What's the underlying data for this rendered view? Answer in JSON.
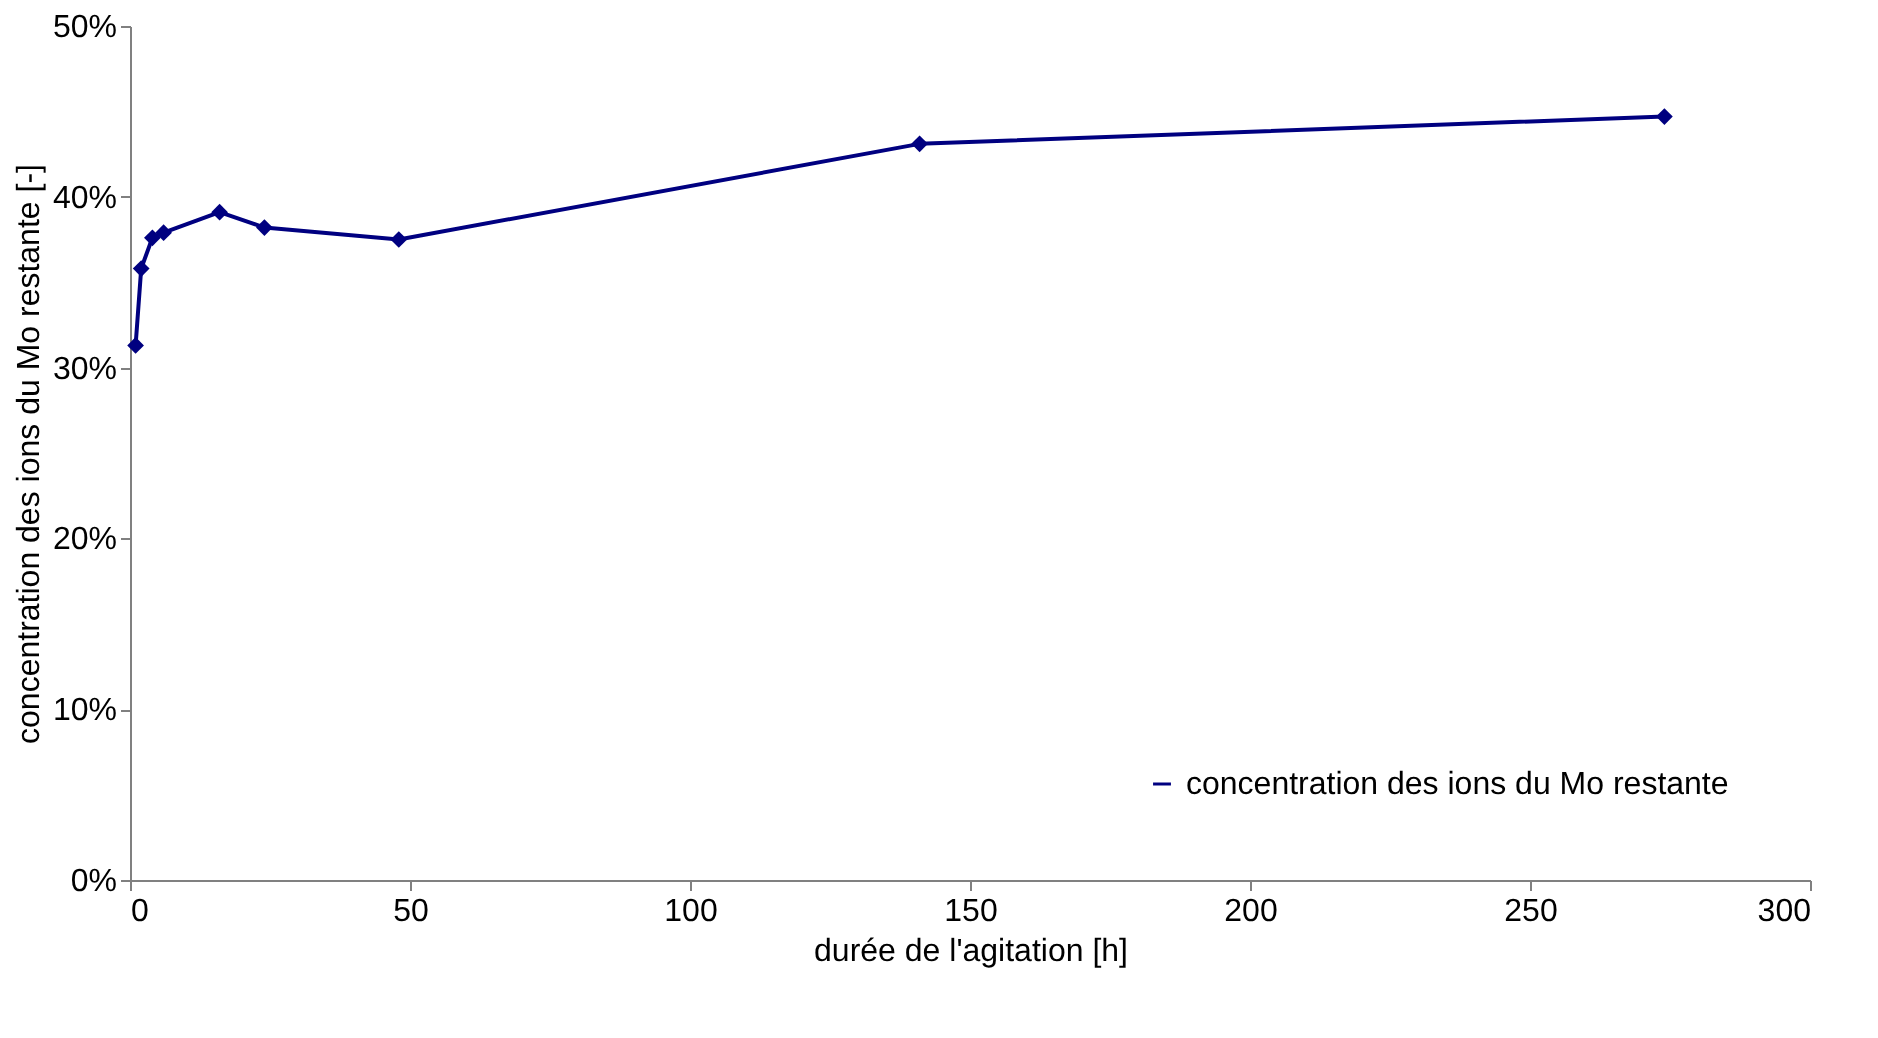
{
  "chart_data": {
    "type": "line",
    "xlabel": "durée de l'agitation [h]",
    "ylabel": "concentration des ions du Mo restante [-]",
    "x": [
      1,
      2,
      4,
      6,
      16,
      24,
      48,
      141,
      274
    ],
    "series": [
      {
        "name": "concentration des ions du Mo restante",
        "color": "#000080",
        "values": [
          0.313,
          0.358,
          0.376,
          0.379,
          0.391,
          0.382,
          0.375,
          0.431,
          0.447
        ]
      }
    ],
    "xlim": [
      0,
      300
    ],
    "xticks": [
      0,
      50,
      100,
      150,
      200,
      250,
      300
    ],
    "ylim": [
      0,
      0.5
    ],
    "yticks": [
      {
        "value": 0,
        "label": "0%"
      },
      {
        "value": 0.1,
        "label": "10%"
      },
      {
        "value": 0.2,
        "label": "20%"
      },
      {
        "value": 0.3,
        "label": "30%"
      },
      {
        "value": 0.4,
        "label": "40%"
      },
      {
        "value": 0.5,
        "label": "50%"
      }
    ],
    "grid": false,
    "legend": "bottom right",
    "marker": "diamond",
    "line_style": "solid"
  }
}
